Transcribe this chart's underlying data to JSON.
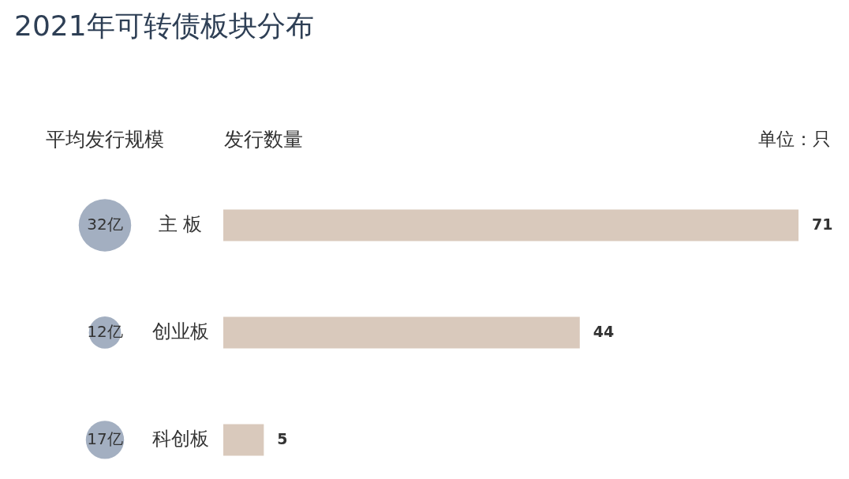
{
  "chart_data": [
    {
      "type": "other",
      "title": "2021年可转债板块分布",
      "xlabel": "平均发行规模",
      "categories": [
        null,
        null,
        null
      ],
      "series": [
        {
          "color": "#a3afc1",
          "values": [
            32,
            12,
            17
          ],
          "value_labels": [
            "32亿",
            "12亿",
            "17亿"
          ]
        }
      ]
    },
    {
      "type": "bar",
      "orientation": "horizontal",
      "xlabel": "发行数量",
      "annotations": [
        "单位：只"
      ],
      "categories": [
        "主 板",
        "创业板",
        "科创板"
      ],
      "series": [
        {
          "color": "#d9c9bc",
          "values": [
            71,
            44,
            5
          ]
        }
      ],
      "data_labels": true
    }
  ]
}
